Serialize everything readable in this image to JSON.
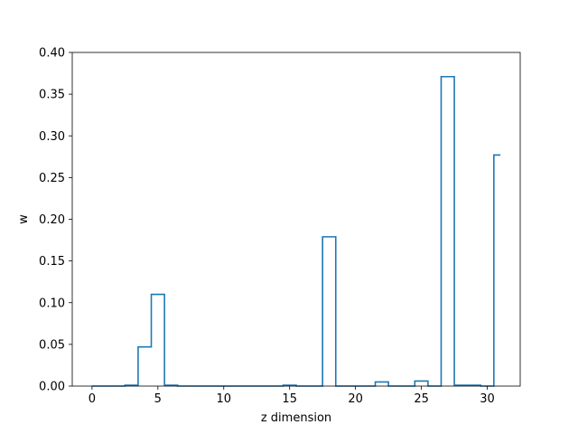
{
  "chart_data": {
    "type": "step",
    "title": "",
    "xlabel": "z dimension",
    "ylabel": "w",
    "xlim": [
      -1.5,
      32.5
    ],
    "ylim": [
      0,
      0.4
    ],
    "x_ticks": [
      0,
      5,
      10,
      15,
      20,
      25,
      30
    ],
    "y_ticks": [
      0.0,
      0.05,
      0.1,
      0.15,
      0.2,
      0.25,
      0.3,
      0.35,
      0.4
    ],
    "x_tick_labels": [
      "0",
      "5",
      "10",
      "15",
      "20",
      "25",
      "30"
    ],
    "y_tick_labels": [
      "0.00",
      "0.05",
      "0.10",
      "0.15",
      "0.20",
      "0.25",
      "0.30",
      "0.35",
      "0.40"
    ],
    "grid": false,
    "line_color": "#1f77b4",
    "x": [
      0,
      1,
      2,
      3,
      4,
      5,
      6,
      7,
      8,
      9,
      10,
      11,
      12,
      13,
      14,
      15,
      16,
      17,
      18,
      19,
      20,
      21,
      22,
      23,
      24,
      25,
      26,
      27,
      28,
      29,
      30,
      31
    ],
    "values": [
      0.0,
      0.0,
      0.0,
      0.001,
      0.047,
      0.11,
      0.001,
      0.0,
      0.0,
      0.0,
      0.0,
      0.0,
      0.0,
      0.0,
      0.0,
      0.001,
      0.0,
      0.0,
      0.179,
      0.0,
      0.0,
      0.0,
      0.005,
      0.0,
      0.0,
      0.006,
      0.0,
      0.371,
      0.001,
      0.001,
      0.0,
      0.277
    ]
  }
}
